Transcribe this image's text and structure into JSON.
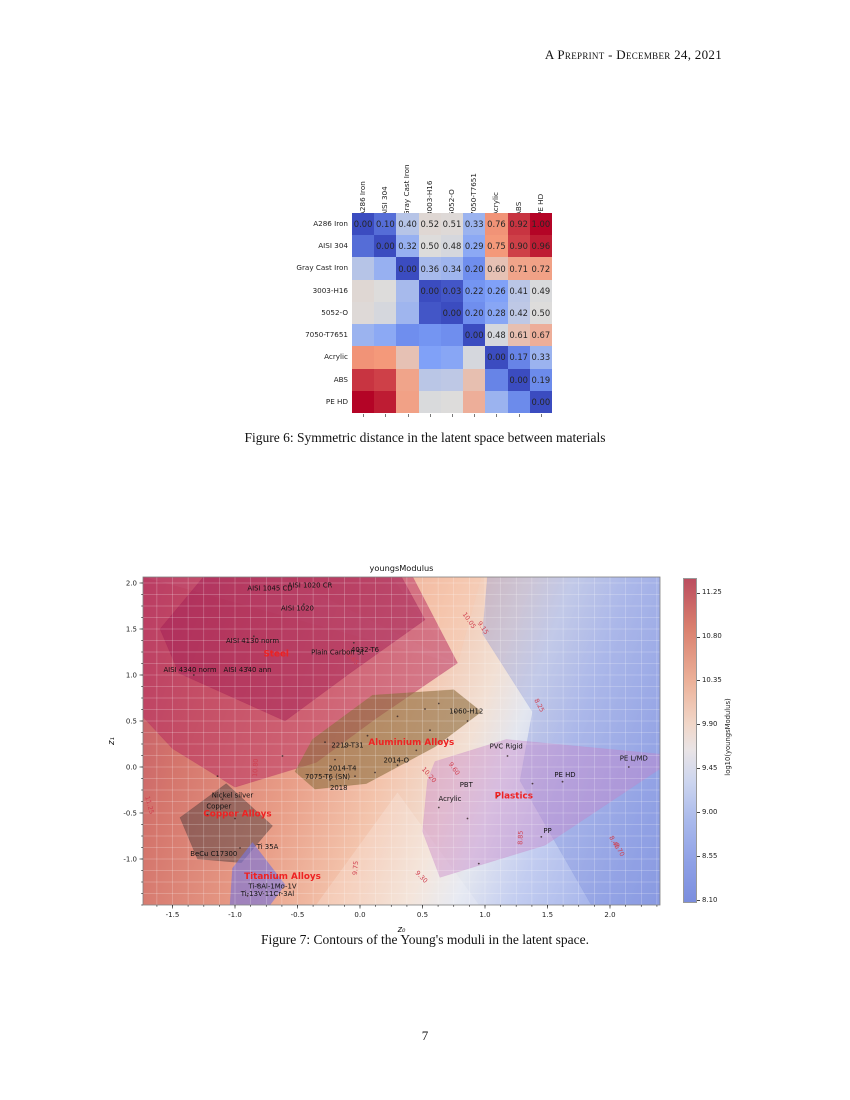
{
  "page": {
    "header": "A Preprint - December 24, 2021",
    "page_number": "7"
  },
  "figure6": {
    "caption": "Figure 6: Symmetric distance in the latent space between materials"
  },
  "figure7": {
    "caption": "Figure 7: Contours of the Young's moduli in the latent space."
  },
  "chart_data": [
    {
      "type": "heatmap",
      "name": "symmetric-distance-matrix",
      "colormap": "coolwarm",
      "vmin": 0.0,
      "vmax": 1.0,
      "annotate": "upper-triangle-only",
      "labels": [
        "A286 Iron",
        "AISI 304",
        "Gray Cast Iron",
        "3003-H16",
        "5052-O",
        "7050-T7651",
        "Acrylic",
        "ABS",
        "PE HD"
      ],
      "values": [
        [
          0.0,
          0.1,
          0.4,
          0.52,
          0.51,
          0.33,
          0.76,
          0.92,
          1.0
        ],
        [
          0.1,
          0.0,
          0.32,
          0.5,
          0.48,
          0.29,
          0.75,
          0.9,
          0.96
        ],
        [
          0.4,
          0.32,
          0.0,
          0.36,
          0.34,
          0.2,
          0.6,
          0.71,
          0.72
        ],
        [
          0.52,
          0.5,
          0.36,
          0.0,
          0.03,
          0.22,
          0.26,
          0.41,
          0.49
        ],
        [
          0.51,
          0.48,
          0.34,
          0.03,
          0.0,
          0.2,
          0.28,
          0.42,
          0.5
        ],
        [
          0.33,
          0.29,
          0.2,
          0.22,
          0.2,
          0.0,
          0.48,
          0.61,
          0.67
        ],
        [
          0.76,
          0.75,
          0.6,
          0.26,
          0.28,
          0.48,
          0.0,
          0.17,
          0.33
        ],
        [
          0.92,
          0.9,
          0.71,
          0.41,
          0.42,
          0.61,
          0.17,
          0.0,
          0.19
        ],
        [
          1.0,
          0.96,
          0.72,
          0.49,
          0.5,
          0.67,
          0.33,
          0.19,
          0.0
        ]
      ]
    },
    {
      "type": "contour",
      "title": "youngsModulus",
      "xlabel": "z₀",
      "ylabel": "z₁",
      "xlim": [
        -1.736,
        2.4
      ],
      "ylim": [
        -1.5,
        2.065
      ],
      "grid_step": 0.125,
      "x_tick_values": [
        -1.5,
        -1.0,
        -0.5,
        0.0,
        0.5,
        1.0,
        1.5,
        2.0
      ],
      "x_tick_labels": [
        "-1.5",
        "-1.0",
        "-0.5",
        "0.0",
        "0.5",
        "1.0",
        "1.5",
        "2.0"
      ],
      "y_tick_values": [
        2.0,
        1.5,
        1.0,
        0.5,
        0.0,
        -0.5,
        -1.0
      ],
      "y_tick_labels": [
        "2.0",
        "1.5",
        "1.0",
        "0.5",
        "0.0",
        "-0.5",
        "-1.0"
      ],
      "colorbar": {
        "label": "log10(youngsModulus)",
        "vmin": 8.07,
        "vmax": 11.4,
        "tick_values": [
          11.25,
          10.8,
          10.35,
          9.9,
          9.45,
          9.0,
          8.55,
          8.1
        ],
        "tick_labels": [
          "11.25",
          "10.80",
          "10.35",
          "9.90",
          "9.45",
          "9.00",
          "8.55",
          "8.10"
        ]
      },
      "background": {
        "high_color": "#bd4f66",
        "low_color": "#7f91de"
      },
      "regions": [
        {
          "name": "wedge-light",
          "color": "#ffffff",
          "opacity": 0.08,
          "points": [
            [
              0.78,
              1.12
            ],
            [
              -1.74,
              2.07
            ],
            [
              -0.62,
              2.07
            ]
          ]
        },
        {
          "name": "wedge-salmon",
          "color": "#f8c8b0",
          "opacity": 0.35,
          "points": [
            [
              0.78,
              1.12
            ],
            [
              0.25,
              2.07
            ],
            [
              0.97,
              2.07
            ]
          ]
        },
        {
          "name": "wedge-bottom",
          "color": "#ffffff",
          "opacity": 0.18,
          "points": [
            [
              0.3,
              -0.28
            ],
            [
              -0.35,
              -1.5
            ],
            [
              0.95,
              -1.5
            ]
          ]
        },
        {
          "name": "low-modulus-overlay",
          "color": "#6a7ed8",
          "opacity": 0.28,
          "points": [
            [
              1.02,
              2.07
            ],
            [
              2.4,
              2.07
            ],
            [
              2.4,
              -1.5
            ],
            [
              1.85,
              -1.5
            ],
            [
              1.28,
              -0.15
            ],
            [
              1.38,
              0.6
            ],
            [
              0.98,
              1.45
            ]
          ]
        },
        {
          "name": "region-steel-outer",
          "color": "#b5285f",
          "opacity": 0.5,
          "points": [
            [
              -1.74,
              2.07
            ],
            [
              0.42,
              2.07
            ],
            [
              0.78,
              1.13
            ],
            [
              0.12,
              0.52
            ],
            [
              -0.35,
              0.05
            ],
            [
              -1.0,
              -0.22
            ],
            [
              -1.5,
              0.2
            ],
            [
              -1.74,
              0.55
            ]
          ]
        },
        {
          "name": "region-steel-inner",
          "color": "#9f1b55",
          "opacity": 0.45,
          "points": [
            [
              -1.25,
              2.07
            ],
            [
              0.33,
              2.07
            ],
            [
              0.52,
              1.6
            ],
            [
              -0.08,
              1.02
            ],
            [
              -0.6,
              0.5
            ],
            [
              -1.45,
              1.02
            ],
            [
              -1.6,
              1.5
            ]
          ]
        },
        {
          "name": "region-aluminium",
          "color": "#8f7040",
          "opacity": 0.62,
          "points": [
            [
              -0.52,
              -0.05
            ],
            [
              -0.38,
              0.3
            ],
            [
              0.1,
              0.78
            ],
            [
              0.75,
              0.84
            ],
            [
              0.97,
              0.6
            ],
            [
              0.6,
              0.22
            ],
            [
              0.05,
              -0.18
            ],
            [
              -0.36,
              -0.24
            ]
          ]
        },
        {
          "name": "region-copper",
          "color": "#4f3d3d",
          "opacity": 0.5,
          "points": [
            [
              -1.07,
              -0.18
            ],
            [
              -0.7,
              -0.64
            ],
            [
              -0.95,
              -1.04
            ],
            [
              -1.3,
              -1.0
            ],
            [
              -1.44,
              -0.55
            ]
          ]
        },
        {
          "name": "region-titanium",
          "color": "#7a74d8",
          "opacity": 0.65,
          "points": [
            [
              -0.86,
              -0.82
            ],
            [
              -0.6,
              -1.28
            ],
            [
              -0.72,
              -1.5
            ],
            [
              -1.04,
              -1.5
            ],
            [
              -1.02,
              -1.1
            ]
          ]
        },
        {
          "name": "region-plastics",
          "color": "#c883c8",
          "opacity": 0.42,
          "points": [
            [
              0.54,
              -0.14
            ],
            [
              0.6,
              0.06
            ],
            [
              1.17,
              0.3
            ],
            [
              2.4,
              0.14
            ],
            [
              2.4,
              -0.02
            ],
            [
              1.48,
              -0.85
            ],
            [
              0.64,
              -1.2
            ],
            [
              0.5,
              -0.7
            ]
          ]
        }
      ],
      "family_labels": [
        {
          "label": "Steel",
          "x": -0.67,
          "y": 1.2
        },
        {
          "label": "Aluminium Alloys",
          "x": 0.41,
          "y": 0.24
        },
        {
          "label": "Copper Alloys",
          "x": -0.98,
          "y": -0.54
        },
        {
          "label": "Titanium Alloys",
          "x": -0.62,
          "y": -1.22
        },
        {
          "label": "Plastics",
          "x": 1.23,
          "y": -0.34
        }
      ],
      "family_label_color": "#ee2222",
      "material_labels": [
        {
          "label": "AISI 1045 CD",
          "x": -0.72,
          "y": 1.92
        },
        {
          "label": "AISI 1020 CR",
          "x": -0.4,
          "y": 1.95
        },
        {
          "label": "AISI 1020",
          "x": -0.5,
          "y": 1.7
        },
        {
          "label": "AISI 4130 norm",
          "x": -0.86,
          "y": 1.35
        },
        {
          "label": "Plain Carbon St",
          "x": -0.18,
          "y": 1.22
        },
        {
          "label": "4032-T6",
          "x": 0.04,
          "y": 1.25
        },
        {
          "label": "AISI 4340 norm",
          "x": -1.36,
          "y": 1.03
        },
        {
          "label": "AISI 4340 ann",
          "x": -0.9,
          "y": 1.03
        },
        {
          "label": "1060-H12",
          "x": 0.85,
          "y": 0.58
        },
        {
          "label": "2219-T31",
          "x": -0.1,
          "y": 0.21
        },
        {
          "label": "2014-O",
          "x": 0.29,
          "y": 0.05
        },
        {
          "label": "2014-T4",
          "x": -0.14,
          "y": -0.04
        },
        {
          "label": "7075-T6 (SN)",
          "x": -0.26,
          "y": -0.13
        },
        {
          "label": "2018",
          "x": -0.17,
          "y": -0.25
        },
        {
          "label": "PVC Rigid",
          "x": 1.17,
          "y": 0.2
        },
        {
          "label": "PE HD",
          "x": 1.64,
          "y": -0.11
        },
        {
          "label": "PE L/MD",
          "x": 2.19,
          "y": 0.07
        },
        {
          "label": "PBT",
          "x": 0.85,
          "y": -0.22
        },
        {
          "label": "Acrylic",
          "x": 0.72,
          "y": -0.37
        },
        {
          "label": "PP",
          "x": 1.5,
          "y": -0.72
        },
        {
          "label": "Nickel silver",
          "x": -1.02,
          "y": -0.33
        },
        {
          "label": "Copper",
          "x": -1.13,
          "y": -0.45
        },
        {
          "label": "Ti 35A",
          "x": -0.74,
          "y": -0.89
        },
        {
          "label": "BeCu C17300",
          "x": -1.17,
          "y": -0.97
        },
        {
          "label": "Ti-8Al-1Mo-1V",
          "x": -0.7,
          "y": -1.32
        },
        {
          "label": "Ti-13V-11Cr-3Al",
          "x": -0.74,
          "y": -1.4
        }
      ],
      "contour_line_labels": [
        {
          "label": "10.05",
          "x": 0.86,
          "y": 1.58,
          "rot": 55
        },
        {
          "label": "9.15",
          "x": 0.97,
          "y": 1.5,
          "rot": 55
        },
        {
          "label": "10.65",
          "x": -0.08,
          "y": 1.18,
          "rot": 50
        },
        {
          "label": "8.25",
          "x": 1.42,
          "y": 0.66,
          "rot": 62
        },
        {
          "label": "10.80",
          "x": -0.82,
          "y": -0.01,
          "rot": -87
        },
        {
          "label": "10.20",
          "x": 0.54,
          "y": -0.1,
          "rot": 48
        },
        {
          "label": "9.60",
          "x": 0.74,
          "y": -0.03,
          "rot": 55
        },
        {
          "label": "11.25",
          "x": -1.7,
          "y": -0.42,
          "rot": 75
        },
        {
          "label": "9.75",
          "x": -0.02,
          "y": -1.1,
          "rot": -85
        },
        {
          "label": "9.30",
          "x": 0.48,
          "y": -1.21,
          "rot": 45
        },
        {
          "label": "8.85",
          "x": 1.3,
          "y": -0.77,
          "rot": -88
        },
        {
          "label": "8.40",
          "x": 2.02,
          "y": -0.83,
          "rot": 60
        },
        {
          "label": "8.70",
          "x": 2.06,
          "y": -0.91,
          "rot": 60
        }
      ],
      "contour_label_color": "#d04050",
      "scatter_points": [
        [
          -0.45,
          1.77
        ],
        [
          -0.05,
          1.35
        ],
        [
          -0.85,
          1.42
        ],
        [
          -1.33,
          1.0
        ],
        [
          -0.9,
          1.08
        ],
        [
          -0.28,
          0.27
        ],
        [
          -0.62,
          0.12
        ],
        [
          -1.14,
          -0.1
        ],
        [
          -0.12,
          0.22
        ],
        [
          -0.2,
          0.08
        ],
        [
          0.06,
          0.34
        ],
        [
          0.3,
          0.55
        ],
        [
          0.52,
          0.63
        ],
        [
          0.63,
          0.69
        ],
        [
          0.76,
          0.6
        ],
        [
          0.56,
          0.4
        ],
        [
          0.3,
          0.02
        ],
        [
          -0.04,
          -0.1
        ],
        [
          -0.24,
          -0.14
        ],
        [
          0.12,
          -0.06
        ],
        [
          0.86,
          0.5
        ],
        [
          0.7,
          0.3
        ],
        [
          0.45,
          0.18
        ],
        [
          -1.1,
          -0.35
        ],
        [
          -1.22,
          -0.52
        ],
        [
          -1.0,
          -0.56
        ],
        [
          -1.24,
          -0.95
        ],
        [
          -0.96,
          -0.88
        ],
        [
          -0.82,
          -1.28
        ],
        [
          -0.9,
          -1.4
        ],
        [
          0.63,
          -0.44
        ],
        [
          0.86,
          -0.56
        ],
        [
          1.1,
          -0.32
        ],
        [
          1.38,
          -0.18
        ],
        [
          1.18,
          0.12
        ],
        [
          1.62,
          -0.16
        ],
        [
          1.45,
          -0.76
        ],
        [
          2.15,
          0.0
        ],
        [
          0.95,
          -1.05
        ]
      ]
    }
  ]
}
